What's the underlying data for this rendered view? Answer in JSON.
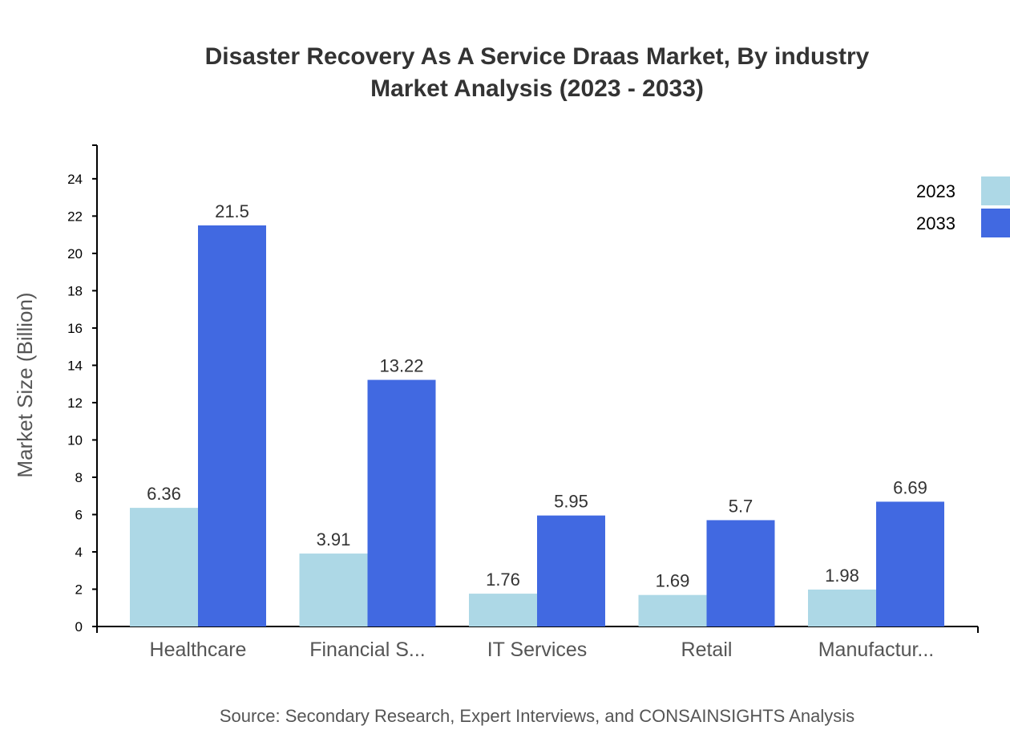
{
  "chart_data": {
    "type": "bar",
    "title": [
      "Disaster Recovery As A Service Draas Market, By industry",
      "Market Analysis (2023 - 2033)"
    ],
    "ylabel": "Market Size (Billion)",
    "xlabel": "",
    "categories": [
      "Healthcare",
      "Financial S...",
      "IT Services",
      "Retail",
      "Manufactur..."
    ],
    "series": [
      {
        "name": "2023",
        "color": "#add8e6",
        "values": [
          6.36,
          3.91,
          1.76,
          1.69,
          1.98
        ]
      },
      {
        "name": "2033",
        "color": "#4169e1",
        "values": [
          21.5,
          13.22,
          5.95,
          5.7,
          6.69
        ]
      }
    ],
    "ylim": [
      0,
      25.8
    ],
    "yticks": [
      0,
      2,
      4,
      6,
      8,
      10,
      12,
      14,
      16,
      18,
      20,
      22,
      24
    ],
    "grid": false,
    "legend": "top-right",
    "source": "Source: Secondary Research, Expert Interviews, and CONSAINSIGHTS Analysis"
  }
}
